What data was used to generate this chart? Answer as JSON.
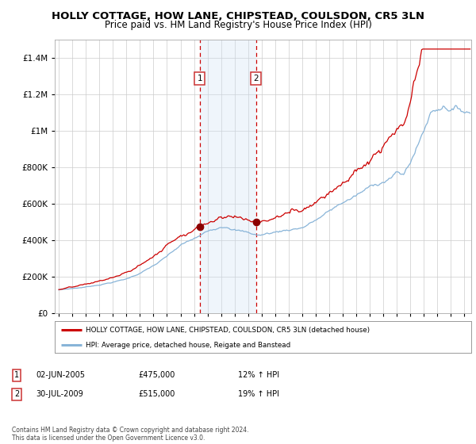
{
  "title": "HOLLY COTTAGE, HOW LANE, CHIPSTEAD, COULSDON, CR5 3LN",
  "subtitle": "Price paid vs. HM Land Registry's House Price Index (HPI)",
  "title_fontsize": 9.5,
  "subtitle_fontsize": 8.5,
  "background_color": "#ffffff",
  "plot_bg_color": "#ffffff",
  "grid_color": "#cccccc",
  "hpi_line_color": "#88b4d8",
  "price_line_color": "#cc0000",
  "marker_color": "#8b0000",
  "dashed_line_color": "#cc0000",
  "shade_color": "#cce0f5",
  "ylim": [
    0,
    1500000
  ],
  "yticks": [
    0,
    200000,
    400000,
    600000,
    800000,
    1000000,
    1200000,
    1400000
  ],
  "ytick_labels": [
    "£0",
    "£200K",
    "£400K",
    "£600K",
    "£800K",
    "£1M",
    "£1.2M",
    "£1.4M"
  ],
  "xlim_start": 1994.7,
  "xlim_end": 2025.5,
  "xtick_years": [
    1995,
    1996,
    1997,
    1998,
    1999,
    2000,
    2001,
    2002,
    2003,
    2004,
    2005,
    2006,
    2007,
    2008,
    2009,
    2010,
    2011,
    2012,
    2013,
    2014,
    2015,
    2016,
    2017,
    2018,
    2019,
    2020,
    2021,
    2022,
    2023,
    2024,
    2025
  ],
  "transaction1_x": 2005.42,
  "transaction1_y": 475000,
  "transaction2_x": 2009.58,
  "transaction2_y": 515000,
  "shade_x1": 2005.42,
  "shade_x2": 2009.58,
  "legend_line1": "HOLLY COTTAGE, HOW LANE, CHIPSTEAD, COULSDON, CR5 3LN (detached house)",
  "legend_line2": "HPI: Average price, detached house, Reigate and Banstead",
  "table_rows": [
    {
      "num": "1",
      "date": "02-JUN-2005",
      "price": "£475,000",
      "hpi": "12% ↑ HPI"
    },
    {
      "num": "2",
      "date": "30-JUL-2009",
      "price": "£515,000",
      "hpi": "19% ↑ HPI"
    }
  ],
  "footnote": "Contains HM Land Registry data © Crown copyright and database right 2024.\nThis data is licensed under the Open Government Licence v3.0."
}
